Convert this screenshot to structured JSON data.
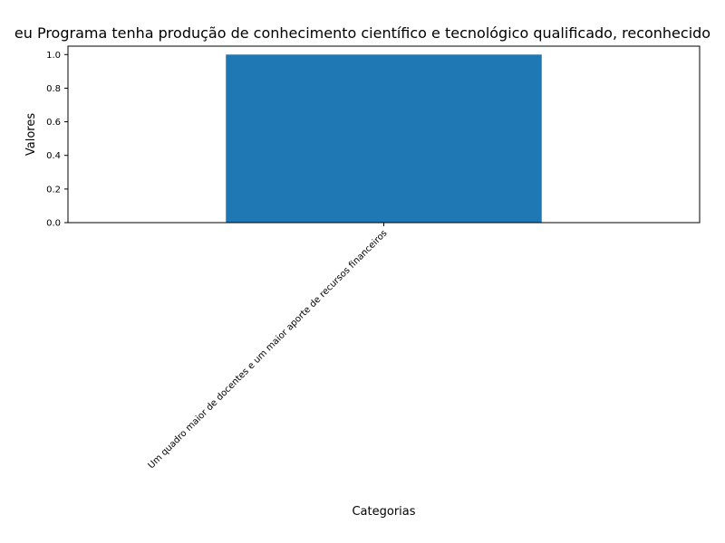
{
  "chart_data": {
    "type": "bar",
    "title": "eu Programa tenha produção de conhecimento científico e tecnológico qualificado, reconhecido",
    "xlabel": "Categorias",
    "ylabel": "Valores",
    "categories": [
      "Um quadro maior de docentes e um maior aporte de recursos financeiros"
    ],
    "values": [
      1.0
    ],
    "ylim": [
      0,
      1.05
    ],
    "yticks": [
      0.0,
      0.2,
      0.4,
      0.6,
      0.8,
      1.0
    ],
    "ytick_labels": [
      "0.0",
      "0.2",
      "0.4",
      "0.6",
      "0.8",
      "1.0"
    ],
    "grid": false,
    "legend": "none",
    "bar_color": "#1f77b4"
  }
}
